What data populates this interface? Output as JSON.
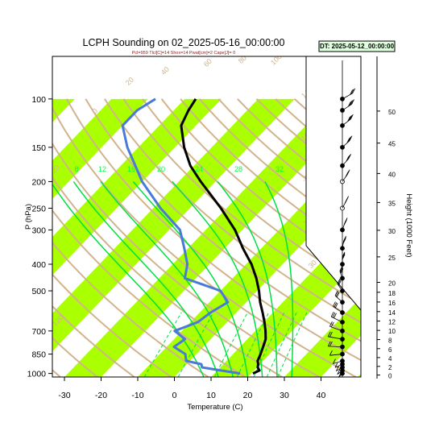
{
  "chart_data": {
    "type": "skew-t",
    "title": "LCPH Sounding on 02_2025-05-16_00:00:00",
    "subtitle": "Pcl=959 Tlcl[C]=14 Shox=14 Pwat[cm]=2 Cape[J]= 0",
    "datetime_label": "DT: 2025-05-12_00:00:00",
    "xlabel": "Temperature (C)",
    "ylabel": "P (hPa)",
    "y2label": "Height (1000 Feet)",
    "x_ticks": [
      -30,
      -20,
      -10,
      0,
      10,
      20,
      30,
      40
    ],
    "x_range": [
      -33,
      51
    ],
    "p_range": [
      1030,
      100
    ],
    "p_ticks": [
      100,
      150,
      200,
      250,
      300,
      400,
      500,
      700,
      850,
      1000
    ],
    "height_ticks": [
      0,
      2,
      4,
      6,
      8,
      10,
      12,
      14,
      16,
      18,
      20,
      25,
      30,
      35,
      40,
      45,
      50
    ],
    "mixing_ratio_labels": [
      "8",
      "12",
      "16",
      "20",
      "24",
      "28",
      "32"
    ],
    "moist_adiabat_labels": [
      "8",
      "12",
      "16",
      "20",
      "24",
      "28",
      "32"
    ],
    "dry_adiabat_labels": [
      "-20",
      "0",
      "20",
      "40",
      "60",
      "80",
      "100",
      "120",
      "140",
      "160",
      "-10",
      "10",
      "30"
    ],
    "series": [
      {
        "name": "Temperature",
        "color": "#000000",
        "points": [
          [
            1000,
            20.5
          ],
          [
            975,
            21.5
          ],
          [
            950,
            20.2
          ],
          [
            925,
            19.5
          ],
          [
            900,
            18.5
          ],
          [
            850,
            17.5
          ],
          [
            800,
            16.3
          ],
          [
            750,
            15.0
          ],
          [
            700,
            12.8
          ],
          [
            650,
            10.2
          ],
          [
            600,
            7.2
          ],
          [
            550,
            3.8
          ],
          [
            500,
            0.5
          ],
          [
            450,
            -3.5
          ],
          [
            400,
            -8.5
          ],
          [
            350,
            -15.0
          ],
          [
            300,
            -22.0
          ],
          [
            250,
            -31.5
          ],
          [
            200,
            -44.0
          ],
          [
            175,
            -51.0
          ],
          [
            150,
            -57.5
          ],
          [
            125,
            -64.0
          ],
          [
            110,
            -66.0
          ],
          [
            100,
            -67.0
          ]
        ]
      },
      {
        "name": "Dew Point",
        "color": "#4a7ad8",
        "points": [
          [
            1000,
            17.0
          ],
          [
            975,
            11.0
          ],
          [
            950,
            5.0
          ],
          [
            925,
            4.0
          ],
          [
            900,
            -1.0
          ],
          [
            850,
            -3.0
          ],
          [
            800,
            -8.0
          ],
          [
            750,
            -7.0
          ],
          [
            700,
            -12.0
          ],
          [
            650,
            -8.0
          ],
          [
            600,
            -7.0
          ],
          [
            550,
            -5.0
          ],
          [
            500,
            -10.0
          ],
          [
            450,
            -23.0
          ],
          [
            400,
            -26.0
          ],
          [
            350,
            -31.0
          ],
          [
            300,
            -37.0
          ],
          [
            250,
            -48.0
          ],
          [
            200,
            -60.0
          ],
          [
            175,
            -66.0
          ],
          [
            150,
            -73.0
          ],
          [
            125,
            -80.0
          ],
          [
            110,
            -80.0
          ],
          [
            100,
            -78.0
          ]
        ]
      },
      {
        "name": "Parcel",
        "color": "#00ff40",
        "points": [
          [
            1000,
            17.5
          ],
          [
            959,
            14.0
          ],
          [
            900,
            11.5
          ],
          [
            850,
            9.3
          ],
          [
            800,
            7.0
          ],
          [
            700,
            1.8
          ],
          [
            600,
            -4.5
          ],
          [
            500,
            -12.5
          ],
          [
            400,
            -23.5
          ],
          [
            300,
            -39.0
          ],
          [
            250,
            -49.0
          ],
          [
            200,
            -61.0
          ],
          [
            150,
            -77.0
          ]
        ]
      }
    ],
    "wind_barbs": [
      [
        1000,
        15,
        8
      ],
      [
        975,
        20,
        10
      ],
      [
        950,
        25,
        12
      ],
      [
        925,
        30,
        10
      ],
      [
        900,
        40,
        12
      ],
      [
        850,
        60,
        14
      ],
      [
        800,
        80,
        15
      ],
      [
        750,
        100,
        18
      ],
      [
        700,
        120,
        22
      ],
      [
        650,
        130,
        25
      ],
      [
        600,
        140,
        28
      ],
      [
        550,
        150,
        30
      ],
      [
        500,
        160,
        34
      ],
      [
        450,
        170,
        36
      ],
      [
        400,
        180,
        40
      ],
      [
        350,
        185,
        45
      ],
      [
        300,
        190,
        50
      ],
      [
        250,
        195,
        55
      ],
      [
        200,
        200,
        60
      ],
      [
        175,
        205,
        55
      ],
      [
        150,
        210,
        50
      ],
      [
        125,
        215,
        40
      ],
      [
        110,
        220,
        35
      ],
      [
        100,
        225,
        30
      ]
    ]
  }
}
